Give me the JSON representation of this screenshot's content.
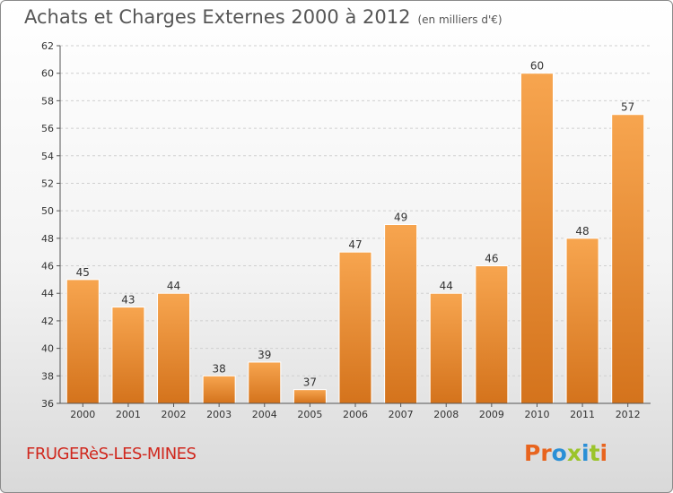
{
  "header": {
    "title": "Achats et Charges Externes 2000 à 2012",
    "unit": "(en milliers d'€)"
  },
  "footer": {
    "city": "FRUGERèS-LES-MINES",
    "logo_text": "Proxiti",
    "logo_colors": [
      "#e8641e",
      "#e8641e",
      "#2a8fd6",
      "#9bc42b",
      "#2a8fd6",
      "#9bc42b",
      "#e8641e"
    ]
  },
  "chart_data": {
    "type": "bar",
    "title": "Achats et Charges Externes 2000 à 2012",
    "subtitle": "(en milliers d'€)",
    "categories": [
      "2000",
      "2001",
      "2002",
      "2003",
      "2004",
      "2005",
      "2006",
      "2007",
      "2008",
      "2009",
      "2010",
      "2011",
      "2012"
    ],
    "values": [
      45,
      43,
      44,
      38,
      39,
      37,
      47,
      49,
      44,
      46,
      60,
      48,
      57
    ],
    "ylim": [
      36,
      62
    ],
    "yticks": [
      36,
      38,
      40,
      42,
      44,
      46,
      48,
      50,
      52,
      54,
      56,
      58,
      60,
      62
    ],
    "grid": true,
    "data_labels": true,
    "bar_color_light": "#f7a54f",
    "bar_color_dark": "#d4731c"
  }
}
